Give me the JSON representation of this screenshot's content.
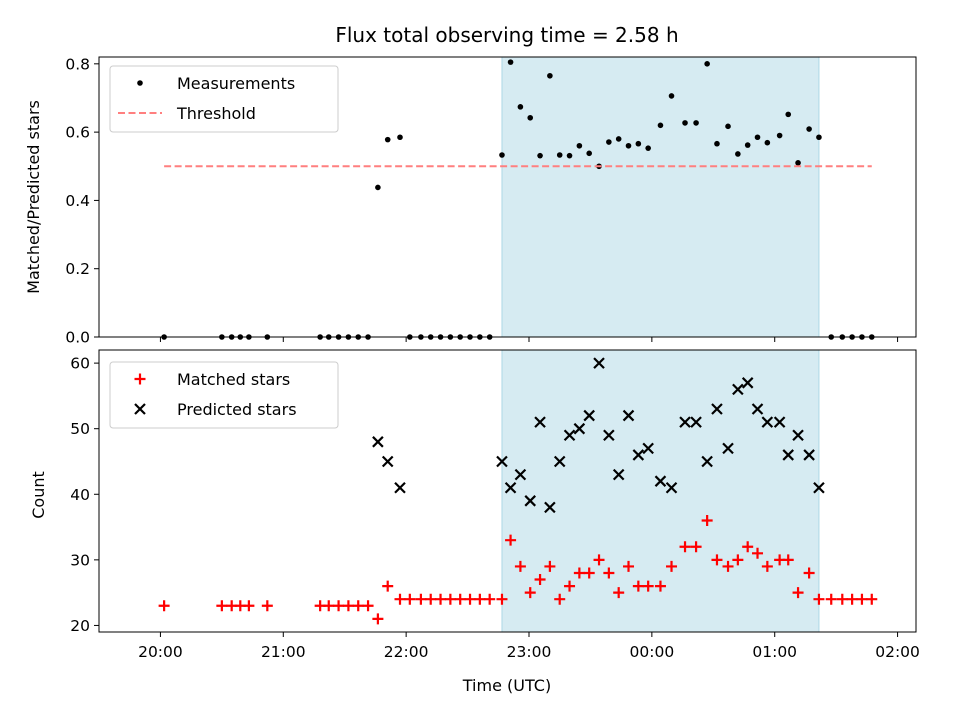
{
  "chart_data": {
    "title": "Flux total observing time = 2.58 h",
    "xlabel": "Time (UTC)",
    "x_unit": "hours since 20:00 UTC",
    "x_range": [
      -0.5,
      6.15
    ],
    "x_ticks": [
      0,
      1,
      2,
      3,
      4,
      5,
      6
    ],
    "x_tick_labels": [
      "20:00",
      "21:00",
      "22:00",
      "23:00",
      "00:00",
      "01:00",
      "02:00"
    ],
    "shaded_interval": [
      2.78,
      5.36
    ],
    "shade_color": "#add8e6",
    "panels": [
      {
        "type": "scatter",
        "ylabel": "Matched/Predicted stars",
        "ylim": [
          0,
          0.82
        ],
        "y_ticks": [
          0.0,
          0.2,
          0.4,
          0.6,
          0.8
        ],
        "y_tick_labels": [
          "0.0",
          "0.2",
          "0.4",
          "0.6",
          "0.8"
        ],
        "legend_position": "top-left",
        "series": [
          {
            "name": "Measurements",
            "marker": "dot",
            "color": "#000000",
            "points": [
              [
                0.03,
                0.0
              ],
              [
                0.5,
                0.0
              ],
              [
                0.58,
                0.0
              ],
              [
                0.65,
                0.0
              ],
              [
                0.72,
                0.0
              ],
              [
                0.87,
                0.0
              ],
              [
                1.3,
                0.0
              ],
              [
                1.37,
                0.0
              ],
              [
                1.45,
                0.0
              ],
              [
                1.53,
                0.0
              ],
              [
                1.61,
                0.0
              ],
              [
                1.69,
                0.0
              ],
              [
                1.77,
                0.438
              ],
              [
                1.85,
                0.578
              ],
              [
                1.95,
                0.585
              ],
              [
                2.03,
                0.0
              ],
              [
                2.12,
                0.0
              ],
              [
                2.2,
                0.0
              ],
              [
                2.28,
                0.0
              ],
              [
                2.36,
                0.0
              ],
              [
                2.44,
                0.0
              ],
              [
                2.52,
                0.0
              ],
              [
                2.6,
                0.0
              ],
              [
                2.68,
                0.0
              ],
              [
                2.78,
                0.533
              ],
              [
                2.85,
                0.805
              ],
              [
                2.93,
                0.674
              ],
              [
                3.01,
                0.642
              ],
              [
                3.09,
                0.531
              ],
              [
                3.17,
                0.765
              ],
              [
                3.25,
                0.533
              ],
              [
                3.33,
                0.531
              ],
              [
                3.41,
                0.56
              ],
              [
                3.49,
                0.538
              ],
              [
                3.57,
                0.5
              ],
              [
                3.65,
                0.571
              ],
              [
                3.73,
                0.58
              ],
              [
                3.81,
                0.56
              ],
              [
                3.89,
                0.566
              ],
              [
                3.97,
                0.553
              ],
              [
                4.07,
                0.62
              ],
              [
                4.16,
                0.706
              ],
              [
                4.27,
                0.627
              ],
              [
                4.36,
                0.627
              ],
              [
                4.45,
                0.8
              ],
              [
                4.53,
                0.566
              ],
              [
                4.62,
                0.617
              ],
              [
                4.7,
                0.536
              ],
              [
                4.78,
                0.562
              ],
              [
                4.86,
                0.585
              ],
              [
                4.94,
                0.569
              ],
              [
                5.04,
                0.59
              ],
              [
                5.11,
                0.652
              ],
              [
                5.19,
                0.51
              ],
              [
                5.28,
                0.609
              ],
              [
                5.36,
                0.585
              ],
              [
                5.46,
                0.0
              ],
              [
                5.55,
                0.0
              ],
              [
                5.63,
                0.0
              ],
              [
                5.71,
                0.0
              ],
              [
                5.79,
                0.0
              ]
            ]
          },
          {
            "name": "Threshold",
            "marker": "dashed-line",
            "color": "#ff7f7f",
            "points": [
              [
                0.03,
                0.5
              ],
              [
                5.79,
                0.5
              ]
            ]
          }
        ]
      },
      {
        "type": "scatter",
        "ylabel": "Count",
        "ylim": [
          19,
          62
        ],
        "y_ticks": [
          20,
          30,
          40,
          50,
          60
        ],
        "y_tick_labels": [
          "20",
          "30",
          "40",
          "50",
          "60"
        ],
        "legend_position": "top-left",
        "series": [
          {
            "name": "Matched stars",
            "marker": "plus",
            "color": "#ff0000",
            "points": [
              [
                0.03,
                23
              ],
              [
                0.5,
                23
              ],
              [
                0.58,
                23
              ],
              [
                0.65,
                23
              ],
              [
                0.72,
                23
              ],
              [
                0.87,
                23
              ],
              [
                1.3,
                23
              ],
              [
                1.37,
                23
              ],
              [
                1.45,
                23
              ],
              [
                1.53,
                23
              ],
              [
                1.61,
                23
              ],
              [
                1.69,
                23
              ],
              [
                1.77,
                21
              ],
              [
                1.85,
                26
              ],
              [
                1.95,
                24
              ],
              [
                2.03,
                24
              ],
              [
                2.12,
                24
              ],
              [
                2.2,
                24
              ],
              [
                2.28,
                24
              ],
              [
                2.36,
                24
              ],
              [
                2.44,
                24
              ],
              [
                2.52,
                24
              ],
              [
                2.6,
                24
              ],
              [
                2.68,
                24
              ],
              [
                2.78,
                24
              ],
              [
                2.85,
                33
              ],
              [
                2.93,
                29
              ],
              [
                3.01,
                25
              ],
              [
                3.09,
                27
              ],
              [
                3.17,
                29
              ],
              [
                3.25,
                24
              ],
              [
                3.33,
                26
              ],
              [
                3.41,
                28
              ],
              [
                3.49,
                28
              ],
              [
                3.57,
                30
              ],
              [
                3.65,
                28
              ],
              [
                3.73,
                25
              ],
              [
                3.81,
                29
              ],
              [
                3.89,
                26
              ],
              [
                3.97,
                26
              ],
              [
                4.07,
                26
              ],
              [
                4.16,
                29
              ],
              [
                4.27,
                32
              ],
              [
                4.36,
                32
              ],
              [
                4.45,
                36
              ],
              [
                4.53,
                30
              ],
              [
                4.62,
                29
              ],
              [
                4.7,
                30
              ],
              [
                4.78,
                32
              ],
              [
                4.86,
                31
              ],
              [
                4.94,
                29
              ],
              [
                5.04,
                30
              ],
              [
                5.11,
                30
              ],
              [
                5.19,
                25
              ],
              [
                5.28,
                28
              ],
              [
                5.36,
                24
              ],
              [
                5.46,
                24
              ],
              [
                5.55,
                24
              ],
              [
                5.63,
                24
              ],
              [
                5.71,
                24
              ],
              [
                5.79,
                24
              ]
            ]
          },
          {
            "name": "Predicted stars",
            "marker": "x",
            "color": "#000000",
            "points": [
              [
                1.77,
                48
              ],
              [
                1.85,
                45
              ],
              [
                1.95,
                41
              ],
              [
                2.78,
                45
              ],
              [
                2.85,
                41
              ],
              [
                2.93,
                43
              ],
              [
                3.01,
                39
              ],
              [
                3.09,
                51
              ],
              [
                3.17,
                38
              ],
              [
                3.25,
                45
              ],
              [
                3.33,
                49
              ],
              [
                3.41,
                50
              ],
              [
                3.49,
                52
              ],
              [
                3.57,
                60
              ],
              [
                3.65,
                49
              ],
              [
                3.73,
                43
              ],
              [
                3.81,
                52
              ],
              [
                3.89,
                46
              ],
              [
                3.97,
                47
              ],
              [
                4.07,
                42
              ],
              [
                4.16,
                41
              ],
              [
                4.27,
                51
              ],
              [
                4.36,
                51
              ],
              [
                4.45,
                45
              ],
              [
                4.53,
                53
              ],
              [
                4.62,
                47
              ],
              [
                4.7,
                56
              ],
              [
                4.78,
                57
              ],
              [
                4.86,
                53
              ],
              [
                4.94,
                51
              ],
              [
                5.04,
                51
              ],
              [
                5.11,
                46
              ],
              [
                5.19,
                49
              ],
              [
                5.28,
                46
              ],
              [
                5.36,
                41
              ]
            ]
          }
        ]
      }
    ]
  }
}
